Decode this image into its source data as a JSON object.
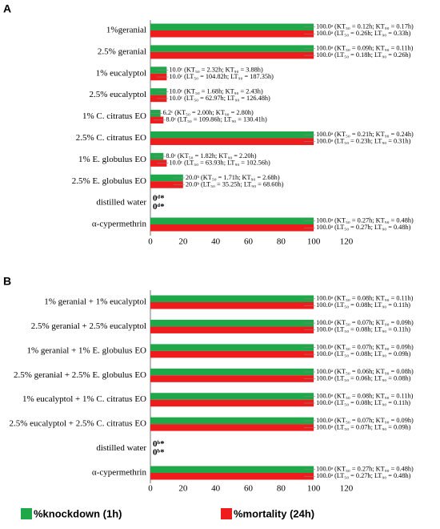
{
  "chart_data": [
    {
      "type": "bar",
      "label": "A",
      "orientation": "horizontal",
      "xlim": [
        0,
        120
      ],
      "xticks": [
        0,
        20,
        40,
        60,
        80,
        100,
        120
      ],
      "categories": [
        "1%geranial",
        "2.5% geranial",
        "1% eucalyptol",
        "2.5% eucalyptol",
        "1% C. citratus EO",
        "2.5% C. citratus EO",
        "1% E. globulus EO",
        "2.5% E. globulus EO",
        "distilled water",
        "α-cypermethrin"
      ],
      "series": [
        {
          "name": "%knockdown (1h)",
          "color": "#1fa84a",
          "values": [
            100,
            100,
            10,
            10,
            6.2,
            100,
            8,
            20,
            0,
            100
          ],
          "value_labels": [
            "100.0ᵃ (KT₅₀ = 0.12h; KT₉₀ = 0.17h)",
            "100.0ᵃ (KT₅₀ = 0.09h; KT₉₀ = 0.11h)",
            "10.0ᶜ (KT₅₀ = 2.32h; KT₉₀ = 3.88h)",
            "10.0ᶜ (KT₅₀ = 1.68h; KT₉₀ = 2.43h)",
            "6.2ᶜ (KT₅₀ = 2.00h; KT₉₀ = 2.80h)",
            "100.0ᵃ (KT₅₀ = 0.21h; KT₉₀ = 0.24h)",
            "8.0ᶜ (KT₅₀ = 1.82h; KT₉₀ = 2.20h)",
            "20.0ᵇ (KT₅₀ = 1.71h; KT₉₀ = 2.68h)",
            "0ᵈ*",
            "100.0ᵃ (KT₅₀ = 0.27h; KT₉₀ = 0.48h)"
          ]
        },
        {
          "name": "%mortality (24h)",
          "color": "#ee1c1c",
          "values": [
            100,
            100,
            10,
            10,
            8,
            100,
            10,
            20,
            0,
            100
          ],
          "value_labels": [
            "100.0ᵃ (LT₅₀ = 0.26h; LT₉₀ = 0.33h)",
            "100.0ᵃ (LT₅₀ = 0.18h; LT₉₀ = 0.26h)",
            "10.0ᶜ (LT₅₀ = 104.82h; LT₉₀ = 187.35h)",
            "10.0ᶜ (LT₅₀ = 62.97h; LT₉₀ = 126.48h)",
            "8.0ᶜ (LT₅₀ = 109.86h; LT₉₀ = 130.41h)",
            "100.0ᵃ (LT₅₀ = 0.23h; LT₉₀ = 0.31h)",
            "10.0ᶜ (LT₅₀ = 63.93h; LT₉₀ = 102.56h)",
            "20.0ᵇ (LT₅₀ = 35.25h; LT₉₀ = 68.60h)",
            "0ᵈ*",
            "100.0ᵃ (LT₅₀ = 0.27h; LT₉₀ = 0.48h)"
          ]
        }
      ]
    },
    {
      "type": "bar",
      "label": "B",
      "orientation": "horizontal",
      "xlim": [
        0,
        120
      ],
      "xticks": [
        0,
        20,
        40,
        60,
        80,
        100,
        120
      ],
      "categories": [
        "1% geranial + 1% eucalyptol",
        "2.5% geranial + 2.5% eucalyptol",
        "1% geranial + 1% E. globulus EO",
        "2.5% geranial + 2.5% E. globulus EO",
        "1% eucalyptol + 1% C. citratus EO",
        "2.5% eucalyptol + 2.5% C. citratus EO",
        "distilled water",
        "α-cypermethrin"
      ],
      "series": [
        {
          "color": "#1fa84a",
          "values": [
            100,
            100,
            100,
            100,
            100,
            100,
            0,
            100
          ],
          "value_labels": [
            "100.0ᵃ (KT₅₀ = 0.08h; KT₉₀ = 0.11h)",
            "100.0ᵃ (KT₅₀ = 0.07h; KT₉₀ = 0.09h)",
            "100.0ᵃ (KT₅₀ = 0.07h; KT₉₀ = 0.09h)",
            "100.0ᵃ (KT₅₀ = 0.06h; KT₉₀ = 0.08h)",
            "100.0ᵃ (KT₅₀ = 0.08h; KT₉₀ = 0.11h)",
            "100.0ᵃ (KT₅₀ = 0.07h; KT₉₀ = 0.09h)",
            "0ᵇ*",
            "100.0ᵃ (KT₅₀ = 0.27h; KT₉₀ = 0.48h)"
          ]
        },
        {
          "color": "#ee1c1c",
          "values": [
            100,
            100,
            100,
            100,
            100,
            100,
            0,
            100
          ],
          "value_labels": [
            "100.0ᵃ (LT₅₀ = 0.08h; LT₉₀ = 0.11h)",
            "100.0ᵃ (LT₅₀ = 0.08h; LT₉₀ = 0.11h)",
            "100.0ᵃ (LT₅₀ = 0.08h; LT₉₀ = 0.09h)",
            "100.0ᵃ (LT₅₀ = 0.06h; LT₉₀ = 0.08h)",
            "100.0ᵃ (LT₅₀ = 0.08h; LT₉₀ = 0.11h)",
            "100.0ᵃ (LT₅₀ = 0.07h; LT₉₀ = 0.09h)",
            "0ᵇ*",
            "100.0ᵃ (LT₅₀ = 0.27h; LT₉₀ = 0.48h)"
          ]
        }
      ]
    }
  ]
}
